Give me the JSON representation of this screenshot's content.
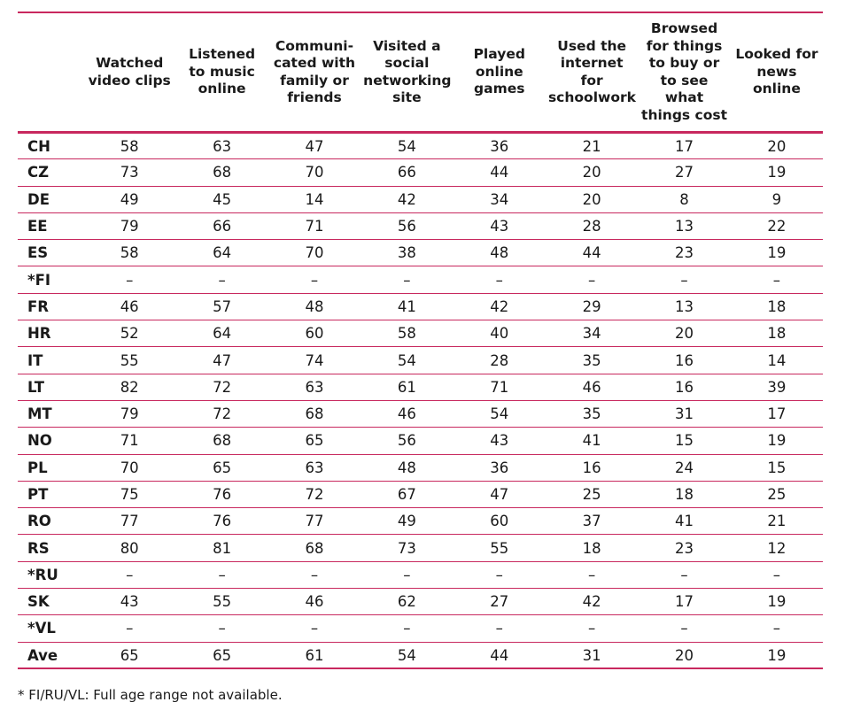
{
  "table": {
    "headers": [
      "",
      "Watched video clips",
      "Listened to music online",
      "Communi-cated with family or friends",
      "Visited a social networking site",
      "Played online games",
      "Used the internet for schoolwork",
      "Browsed for things to buy or to see what things cost",
      "Looked for news online"
    ],
    "rows": [
      {
        "country": "CH",
        "values": [
          "58",
          "63",
          "47",
          "54",
          "36",
          "21",
          "17",
          "20"
        ]
      },
      {
        "country": "CZ",
        "values": [
          "73",
          "68",
          "70",
          "66",
          "44",
          "20",
          "27",
          "19"
        ]
      },
      {
        "country": "DE",
        "values": [
          "49",
          "45",
          "14",
          "42",
          "34",
          "20",
          "8",
          "9"
        ]
      },
      {
        "country": "EE",
        "values": [
          "79",
          "66",
          "71",
          "56",
          "43",
          "28",
          "13",
          "22"
        ]
      },
      {
        "country": "ES",
        "values": [
          "58",
          "64",
          "70",
          "38",
          "48",
          "44",
          "23",
          "19"
        ]
      },
      {
        "country": "*FI",
        "values": [
          "–",
          "–",
          "–",
          "–",
          "–",
          "–",
          "–",
          "–"
        ]
      },
      {
        "country": "FR",
        "values": [
          "46",
          "57",
          "48",
          "41",
          "42",
          "29",
          "13",
          "18"
        ]
      },
      {
        "country": "HR",
        "values": [
          "52",
          "64",
          "60",
          "58",
          "40",
          "34",
          "20",
          "18"
        ]
      },
      {
        "country": "IT",
        "values": [
          "55",
          "47",
          "74",
          "54",
          "28",
          "35",
          "16",
          "14"
        ]
      },
      {
        "country": "LT",
        "values": [
          "82",
          "72",
          "63",
          "61",
          "71",
          "46",
          "16",
          "39"
        ]
      },
      {
        "country": "MT",
        "values": [
          "79",
          "72",
          "68",
          "46",
          "54",
          "35",
          "31",
          "17"
        ]
      },
      {
        "country": "NO",
        "values": [
          "71",
          "68",
          "65",
          "56",
          "43",
          "41",
          "15",
          "19"
        ]
      },
      {
        "country": "PL",
        "values": [
          "70",
          "65",
          "63",
          "48",
          "36",
          "16",
          "24",
          "15"
        ]
      },
      {
        "country": "PT",
        "values": [
          "75",
          "76",
          "72",
          "67",
          "47",
          "25",
          "18",
          "25"
        ]
      },
      {
        "country": "RO",
        "values": [
          "77",
          "76",
          "77",
          "49",
          "60",
          "37",
          "41",
          "21"
        ]
      },
      {
        "country": "RS",
        "values": [
          "80",
          "81",
          "68",
          "73",
          "55",
          "18",
          "23",
          "12"
        ]
      },
      {
        "country": "*RU",
        "values": [
          "–",
          "–",
          "–",
          "–",
          "–",
          "–",
          "–",
          "–"
        ]
      },
      {
        "country": "SK",
        "values": [
          "43",
          "55",
          "46",
          "62",
          "27",
          "42",
          "17",
          "19"
        ]
      },
      {
        "country": "*VL",
        "values": [
          "–",
          "–",
          "–",
          "–",
          "–",
          "–",
          "–",
          "–"
        ]
      },
      {
        "country": "Ave",
        "values": [
          "65",
          "65",
          "61",
          "54",
          "44",
          "31",
          "20",
          "19"
        ]
      }
    ]
  },
  "footnote": "* FI/RU/VL: Full age range not available.",
  "colors": {
    "rule": "#c8285e",
    "text": "#1a1a1a"
  }
}
